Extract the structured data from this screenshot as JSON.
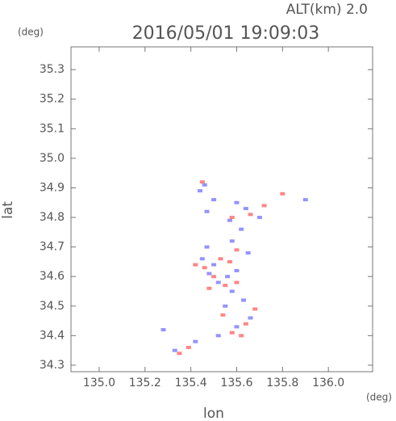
{
  "chart_data": {
    "type": "scatter",
    "title": "2016/05/01 19:09:03",
    "annotation": "ALT(km) 2.0",
    "x_unit": "(deg)",
    "y_unit": "(deg)",
    "xlabel": "lon",
    "ylabel": "lat",
    "xlim": [
      134.877,
      136.193
    ],
    "ylim": [
      34.278,
      35.377
    ],
    "xticks": [
      {
        "value": 135.0,
        "label": "135.0"
      },
      135.2,
      135.4,
      135.6,
      135.8,
      {
        "value": 136.0,
        "label": "136.0"
      }
    ],
    "yticks": [
      34.3,
      34.4,
      34.5,
      34.6,
      34.7,
      34.8,
      34.9,
      {
        "value": 35.0,
        "label": "35.0"
      },
      35.1,
      35.2,
      35.3
    ],
    "series": [
      {
        "color": "#8080ff",
        "x": [
          135.46,
          135.44,
          135.5,
          135.47,
          135.6,
          135.64,
          135.57,
          135.62,
          135.7,
          135.9,
          135.45,
          135.5,
          135.48,
          135.56,
          135.6,
          135.52,
          135.58,
          135.63,
          135.55,
          135.66,
          135.6,
          135.28,
          135.33,
          135.42,
          135.52,
          135.47,
          135.65,
          135.58
        ],
        "values": [
          34.91,
          34.89,
          34.86,
          34.82,
          34.85,
          34.83,
          34.79,
          34.76,
          34.8,
          34.86,
          34.66,
          34.64,
          34.61,
          34.6,
          34.62,
          34.58,
          34.55,
          34.52,
          34.5,
          34.46,
          34.43,
          34.42,
          34.35,
          34.38,
          34.4,
          34.7,
          34.68,
          34.72
        ]
      },
      {
        "color": "#ff7070",
        "x": [
          135.45,
          135.66,
          135.72,
          135.8,
          135.58,
          135.42,
          135.46,
          135.53,
          135.57,
          135.5,
          135.6,
          135.55,
          135.54,
          135.68,
          135.64,
          135.58,
          135.62,
          135.39,
          135.35,
          135.6,
          135.48
        ],
        "values": [
          34.92,
          34.81,
          34.84,
          34.88,
          34.8,
          34.64,
          34.63,
          34.66,
          34.65,
          34.6,
          34.58,
          34.57,
          34.47,
          34.49,
          34.44,
          34.41,
          34.4,
          34.36,
          34.34,
          34.69,
          34.56
        ]
      }
    ]
  }
}
